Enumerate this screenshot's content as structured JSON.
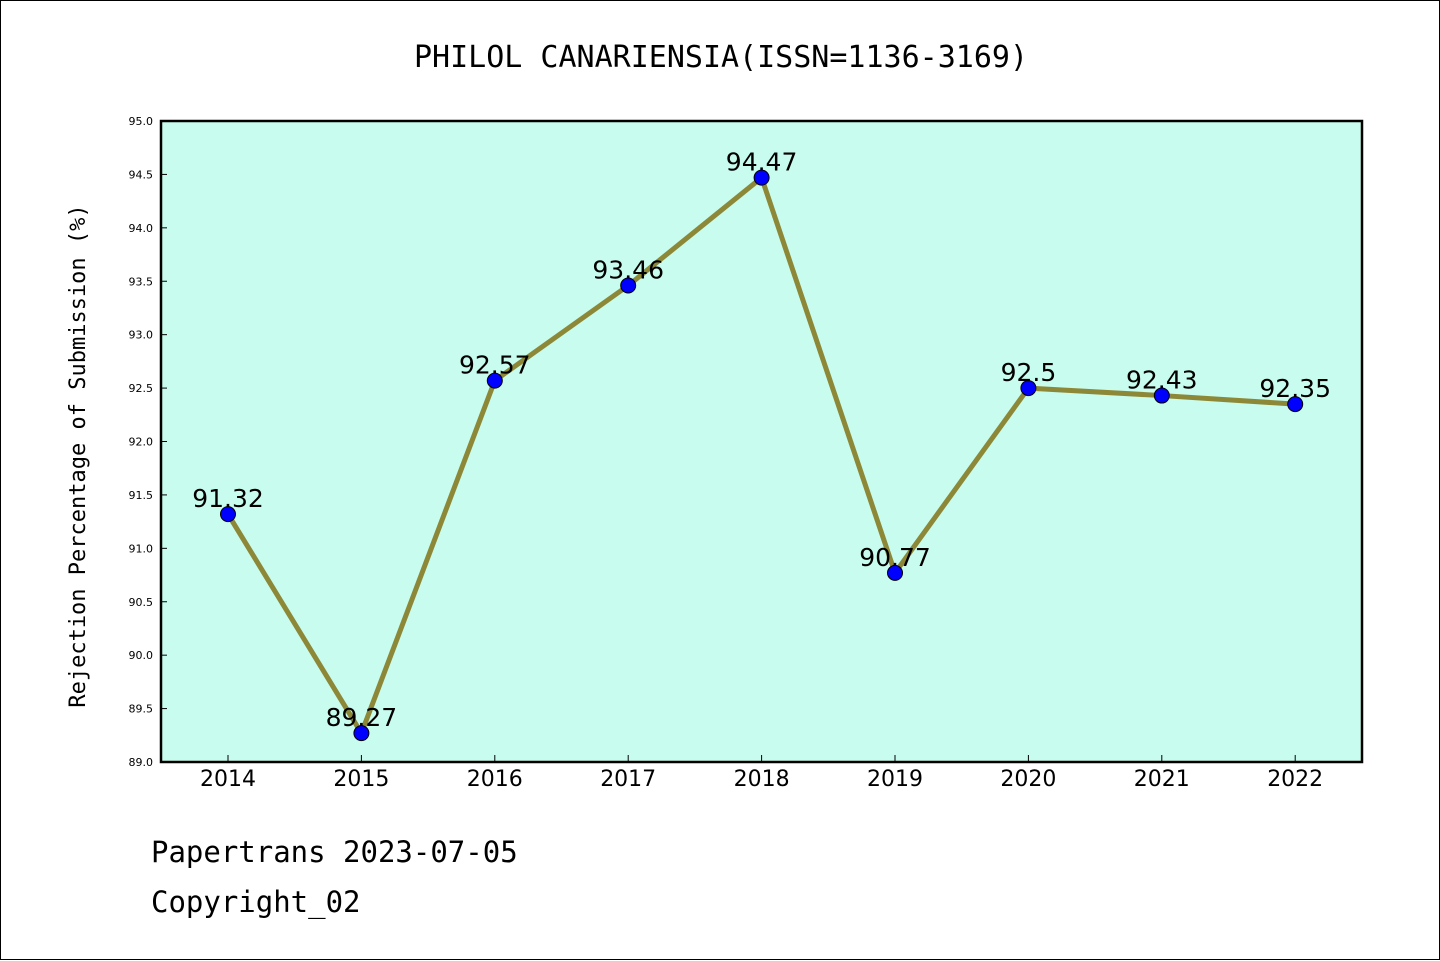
{
  "footer": {
    "line1": "Papertrans 2023-07-05",
    "line2": "Copyright_02"
  },
  "chart_data": {
    "type": "line",
    "title": "PHILOL CANARIENSIA(ISSN=1136-3169)",
    "xlabel": "",
    "ylabel": "Rejection Percentage of Submission (%)",
    "categories": [
      "2014",
      "2015",
      "2016",
      "2017",
      "2018",
      "2019",
      "2020",
      "2021",
      "2022"
    ],
    "values": [
      91.32,
      89.27,
      92.57,
      93.46,
      94.47,
      90.77,
      92.5,
      92.43,
      92.35
    ],
    "data_labels": [
      "91.32",
      "89.27",
      "92.57",
      "93.46",
      "94.47",
      "90.77",
      "92.5",
      "92.43",
      "92.35"
    ],
    "ylim": [
      89.0,
      95.0
    ],
    "yticks": [
      "89.0",
      "89.5",
      "90.0",
      "90.5",
      "91.0",
      "91.5",
      "92.0",
      "92.5",
      "93.0",
      "93.5",
      "94.0",
      "94.5",
      "95.0"
    ],
    "grid": false,
    "colors": {
      "plot_background": "#c8fcee",
      "line": "#8c8838",
      "marker": "#0000ff"
    }
  }
}
